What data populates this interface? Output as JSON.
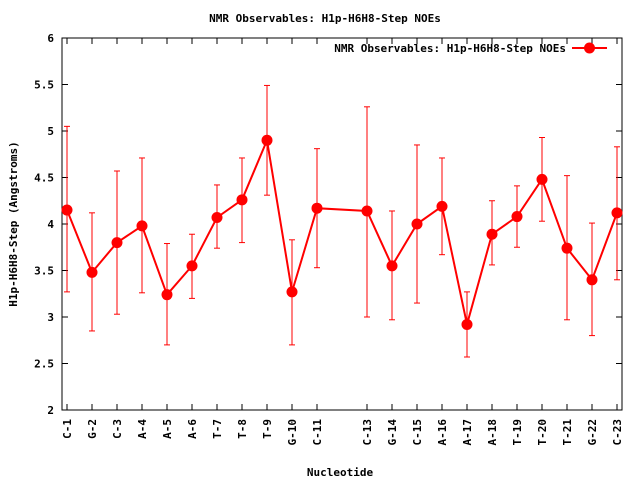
{
  "chart_data": {
    "type": "line",
    "title": "NMR Observables: H1p-H6H8-Step NOEs",
    "xlabel": "Nucleotide",
    "ylabel": "H1p-H6H8-Step (Angstroms)",
    "ylim": [
      2,
      6
    ],
    "yticks": [
      "2",
      "2.5",
      "3",
      "3.5",
      "4",
      "4.5",
      "5",
      "5.5",
      "6"
    ],
    "categories": [
      "C-1",
      "G-2",
      "C-3",
      "A-4",
      "A-5",
      "A-6",
      "T-7",
      "T-8",
      "T-9",
      "G-10",
      "C-11",
      "C-13",
      "G-14",
      "C-15",
      "A-16",
      "A-17",
      "A-18",
      "T-19",
      "T-20",
      "T-21",
      "G-22",
      "C-23"
    ],
    "positions": [
      1,
      2,
      3,
      4,
      5,
      6,
      7,
      8,
      9,
      10,
      11,
      13,
      14,
      15,
      16,
      17,
      18,
      19,
      20,
      21,
      22,
      23
    ],
    "xlim": [
      1,
      23
    ],
    "grid": false,
    "legend_position": "top-right",
    "series": [
      {
        "name": "NMR Observables: H1p-H6H8-Step NOEs",
        "color": "#ff0000",
        "values": [
          4.15,
          3.48,
          3.8,
          3.98,
          3.24,
          3.55,
          4.07,
          4.26,
          4.9,
          3.27,
          4.17,
          4.14,
          3.55,
          4.0,
          4.19,
          2.92,
          3.89,
          4.08,
          4.48,
          3.74,
          3.4,
          4.12
        ],
        "error_low": [
          3.27,
          2.85,
          3.03,
          3.26,
          2.7,
          3.2,
          3.74,
          3.8,
          4.31,
          2.7,
          3.53,
          3.0,
          2.97,
          3.15,
          3.67,
          2.57,
          3.56,
          3.75,
          4.03,
          2.97,
          2.8,
          3.4
        ],
        "error_high": [
          5.05,
          4.12,
          4.57,
          4.71,
          3.79,
          3.89,
          4.42,
          4.71,
          5.49,
          3.83,
          4.81,
          5.26,
          4.14,
          4.85,
          4.71,
          3.27,
          4.25,
          4.41,
          4.93,
          4.52,
          4.01,
          4.83
        ]
      }
    ]
  }
}
